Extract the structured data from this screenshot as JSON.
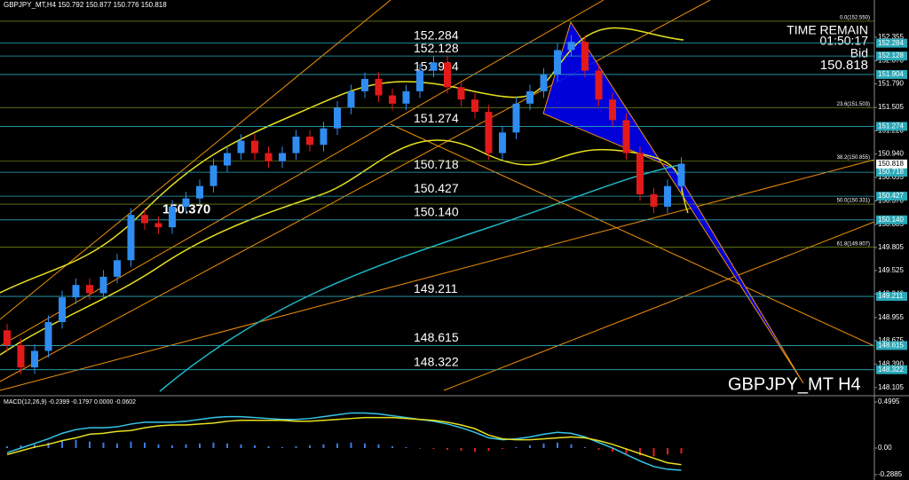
{
  "chart_data": {
    "type": "candlestick",
    "header": "GBPJPY_MT,H4  150.792 150.877 150.776 150.818",
    "symbol_label": "GBPJPY_MT H4",
    "time_remain_label": "TIME REMAIN",
    "time_remain": "01:50:17",
    "bid_label": "Bid",
    "bid": 150.818,
    "annotation": {
      "value": 150.37,
      "label": "150.370"
    },
    "up_color": "#2f8cf0",
    "down_color": "#e31a1a",
    "open": [
      148.8,
      148.62,
      148.35,
      148.55,
      148.9,
      149.2,
      149.35,
      149.25,
      149.45,
      149.65,
      150.2,
      150.1,
      150.05,
      150.3,
      150.4,
      150.55,
      150.8,
      150.95,
      151.1,
      150.95,
      150.85,
      150.95,
      151.15,
      151.05,
      151.25,
      151.5,
      151.7,
      151.85,
      151.65,
      151.55,
      151.7,
      151.95,
      152.05,
      151.75,
      151.6,
      151.45,
      150.95,
      151.2,
      151.55,
      151.7,
      151.9,
      152.2,
      152.3,
      151.95,
      151.6,
      151.35,
      150.95,
      150.45,
      150.3,
      150.55
    ],
    "close": [
      148.62,
      148.35,
      148.55,
      148.9,
      149.2,
      149.35,
      149.25,
      149.45,
      149.65,
      150.2,
      150.1,
      150.05,
      150.3,
      150.4,
      150.55,
      150.8,
      150.95,
      151.1,
      150.95,
      150.85,
      150.95,
      151.15,
      151.05,
      151.25,
      151.5,
      151.7,
      151.85,
      151.65,
      151.55,
      151.7,
      151.95,
      152.05,
      151.75,
      151.6,
      151.45,
      150.95,
      151.2,
      151.55,
      151.7,
      151.9,
      152.2,
      152.3,
      151.95,
      151.6,
      151.35,
      150.95,
      150.45,
      150.3,
      150.55,
      150.82
    ],
    "high": [
      148.88,
      148.7,
      148.63,
      148.98,
      149.28,
      149.43,
      149.43,
      149.53,
      149.73,
      150.28,
      150.28,
      150.18,
      150.38,
      150.48,
      150.63,
      150.88,
      151.03,
      151.18,
      151.18,
      151.03,
      151.03,
      151.23,
      151.23,
      151.33,
      151.58,
      151.78,
      151.93,
      151.93,
      151.73,
      151.78,
      152.03,
      152.13,
      152.13,
      151.83,
      151.68,
      151.53,
      151.28,
      151.63,
      151.78,
      151.98,
      152.28,
      152.38,
      152.38,
      152.03,
      151.68,
      151.43,
      151.03,
      150.53,
      150.63,
      150.9
    ],
    "low": [
      148.54,
      148.27,
      148.27,
      148.47,
      148.82,
      149.12,
      149.17,
      149.17,
      149.37,
      149.57,
      150.02,
      149.97,
      149.97,
      150.22,
      150.32,
      150.47,
      150.72,
      150.87,
      150.87,
      150.77,
      150.77,
      150.87,
      150.97,
      150.97,
      151.17,
      151.42,
      151.62,
      151.57,
      151.47,
      151.47,
      151.62,
      151.87,
      151.67,
      151.52,
      151.37,
      150.87,
      150.87,
      151.12,
      151.47,
      151.62,
      151.82,
      152.12,
      151.87,
      151.52,
      151.27,
      150.87,
      150.37,
      150.22,
      150.22,
      150.47
    ],
    "ylim": [
      148.06,
      152.7
    ],
    "yticks": [
      152.355,
      {
        "value": 152.07,
        "label": "152.070"
      },
      {
        "value": 151.79,
        "label": "151.790"
      },
      151.505,
      {
        "value": 151.22,
        "label": "151.220"
      },
      {
        "value": 150.94,
        "label": "150.940"
      },
      150.655,
      {
        "value": 150.37,
        "label": "150.370"
      },
      150.085,
      149.805,
      149.525,
      {
        "value": 149.24,
        "label": "149.240"
      },
      148.955,
      148.675,
      {
        "value": 148.39,
        "label": "148.390"
      },
      148.105
    ],
    "levels": [
      152.284,
      152.128,
      151.904,
      151.274,
      150.718,
      150.427,
      {
        "value": 150.14,
        "label": "150.140"
      },
      149.211,
      148.615,
      148.322
    ],
    "fib_levels": [
      {
        "value": 152.55,
        "label": "0.0(152.550)"
      },
      {
        "value": 151.503,
        "label": "23.6(151.503)"
      },
      {
        "value": 150.855,
        "label": "38.2(150.855)"
      },
      {
        "value": 150.331,
        "label": "50.0(150.331)"
      },
      {
        "value": 149.807,
        "label": "61.8(149.807)"
      }
    ],
    "macd": {
      "header": "MACD(12,26,9) -0.2399 -0.1797 0.0000 -0.0602",
      "ylim": [
        -0.346,
        0.538
      ],
      "yticks": [
        0.4995,
        {
          "value": 0,
          "label": "0.00"
        },
        -0.2885
      ],
      "histogram": [
        0.02,
        0.03,
        0.04,
        0.06,
        0.08,
        0.09,
        0.07,
        0.06,
        0.05,
        0.07,
        0.06,
        0.04,
        0.03,
        0.04,
        0.05,
        0.06,
        0.05,
        0.04,
        0.03,
        0.02,
        0.01,
        0.02,
        0.03,
        0.04,
        0.05,
        0.06,
        0.05,
        0.04,
        0.02,
        0.01,
        0.0,
        -0.01,
        -0.02,
        -0.03,
        -0.04,
        -0.03,
        -0.01,
        0.01,
        0.03,
        0.05,
        0.06,
        0.04,
        0.01,
        -0.02,
        -0.04,
        -0.06,
        -0.08,
        -0.09,
        -0.07,
        -0.06
      ],
      "series": [
        {
          "name": "MACD",
          "color": "#35c6e8",
          "values": [
            -0.05,
            0.0,
            0.05,
            0.1,
            0.16,
            0.2,
            0.22,
            0.22,
            0.23,
            0.26,
            0.28,
            0.28,
            0.28,
            0.29,
            0.31,
            0.33,
            0.34,
            0.34,
            0.33,
            0.32,
            0.31,
            0.31,
            0.32,
            0.34,
            0.36,
            0.38,
            0.38,
            0.37,
            0.35,
            0.33,
            0.31,
            0.29,
            0.26,
            0.22,
            0.17,
            0.11,
            0.09,
            0.1,
            0.12,
            0.15,
            0.17,
            0.16,
            0.12,
            0.06,
            0.0,
            -0.07,
            -0.14,
            -0.2,
            -0.23,
            -0.24
          ]
        },
        {
          "name": "Signal",
          "color": "#e8e020",
          "values": [
            -0.07,
            -0.03,
            0.01,
            0.04,
            0.08,
            0.11,
            0.15,
            0.16,
            0.18,
            0.19,
            0.22,
            0.24,
            0.25,
            0.25,
            0.26,
            0.27,
            0.29,
            0.3,
            0.3,
            0.3,
            0.3,
            0.29,
            0.29,
            0.3,
            0.31,
            0.32,
            0.33,
            0.33,
            0.33,
            0.32,
            0.31,
            0.3,
            0.28,
            0.25,
            0.21,
            0.14,
            0.1,
            0.09,
            0.09,
            0.1,
            0.11,
            0.12,
            0.11,
            0.08,
            0.04,
            -0.01,
            -0.06,
            -0.11,
            -0.16,
            -0.18
          ]
        }
      ]
    }
  }
}
